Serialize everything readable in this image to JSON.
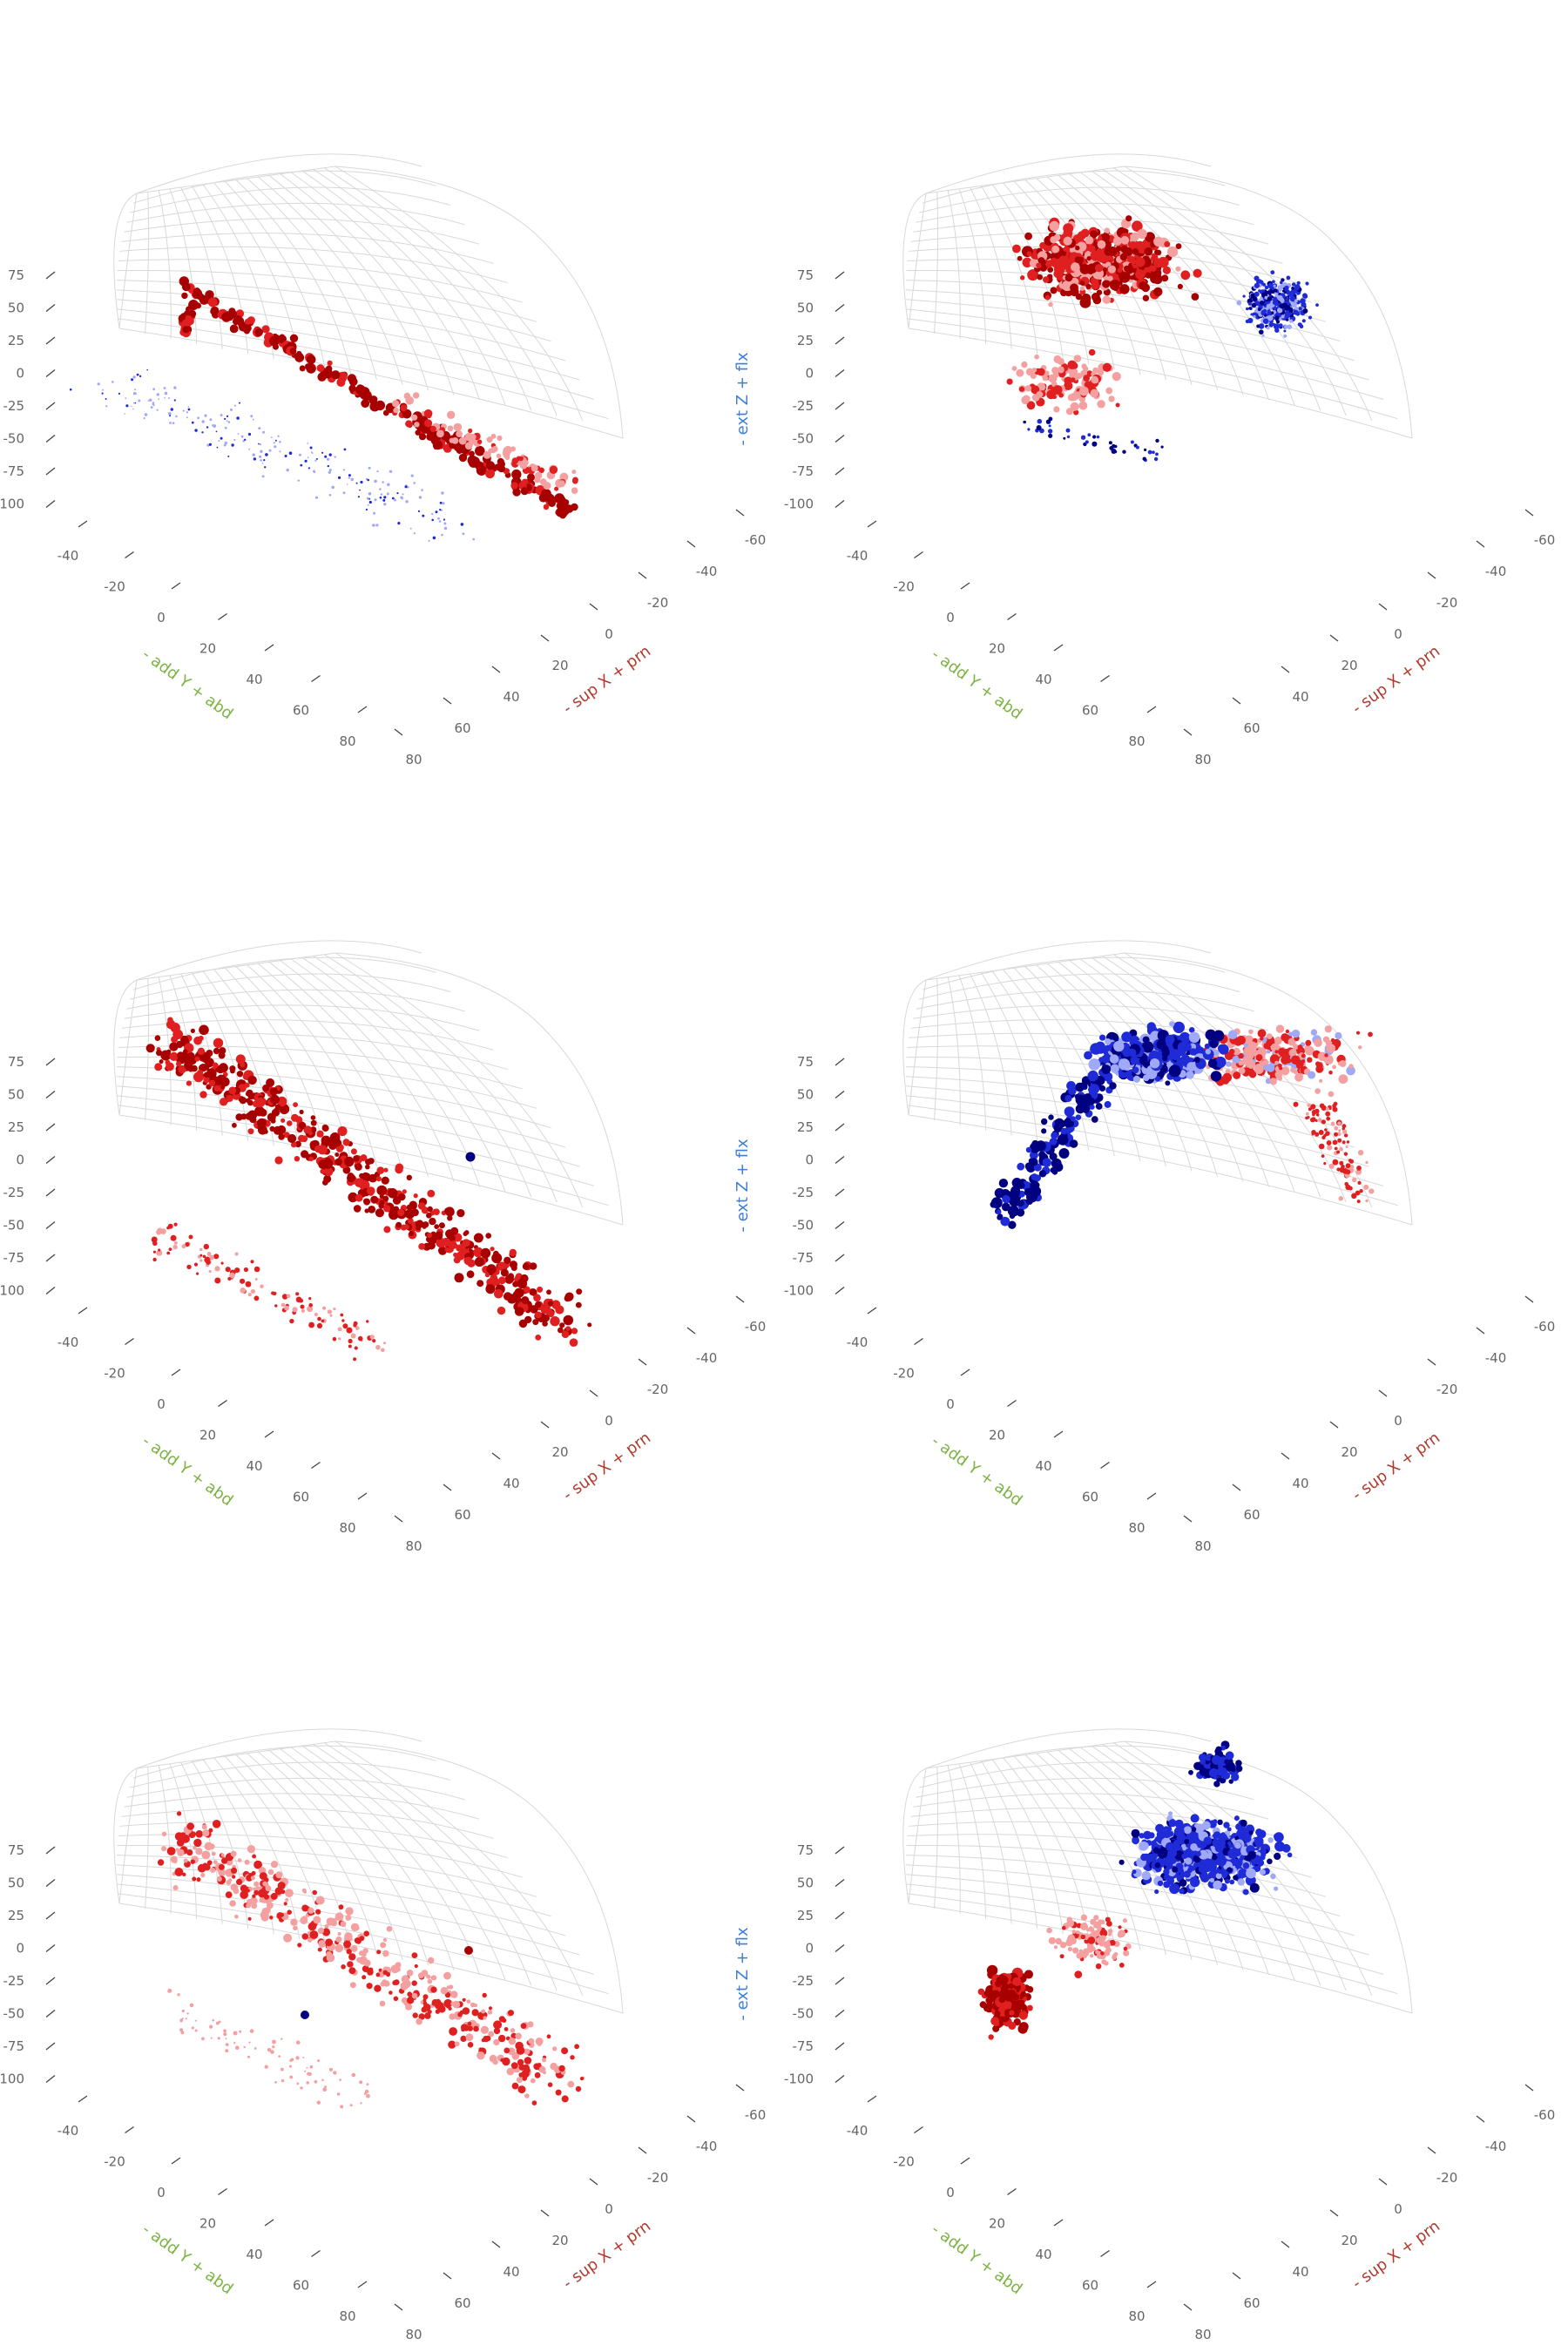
{
  "figure": {
    "layout": "3 rows x 2 columns grid of 3D scatter plots",
    "axes": {
      "x": {
        "title_parts": [
          "- sup",
          "X",
          "+ prn"
        ],
        "color": "#b03a2e",
        "ticks": [
          "-60",
          "-40",
          "-20",
          "0",
          "20",
          "40",
          "60",
          "80"
        ]
      },
      "y": {
        "title_parts": [
          "- add",
          "Y",
          "+ abd"
        ],
        "color": "#7cb342",
        "ticks": [
          "-40",
          "-20",
          "0",
          "20",
          "40",
          "60",
          "80"
        ]
      },
      "z": {
        "title_parts": [
          "- ext",
          "Z",
          "+ flx"
        ],
        "color": "#3f7fd6",
        "ticks": [
          "75",
          "50",
          "25",
          "0",
          "-25",
          "-50",
          "-75",
          "-100"
        ]
      }
    },
    "colors": {
      "dark_red": "#a80000",
      "red": "#e02020",
      "light_red": "#f4a0a0",
      "light_blue": "#a0a8f8",
      "blue": "#1f2bd6",
      "dark_blue": "#000080",
      "grid": "#d8d8d8",
      "tick_text": "#666666"
    }
  },
  "chart_data": [
    {
      "panel": "row1-left",
      "type": "scatter",
      "dimensions": 3,
      "color_scale": "red-white-blue diverging",
      "dominant": "dark red trail from upper-left (Y≈-40, Z≈50) down to lower-right (X≈-60, Z≈-100); sparse light-blue points below",
      "z_title_shown": false
    },
    {
      "panel": "row1-right",
      "type": "scatter",
      "dimensions": 3,
      "color_scale": "red-white-blue diverging",
      "dominant": "dense dark/medium red cloud at top, blue cluster on right near X≈-60",
      "z_title_shown": true
    },
    {
      "panel": "row2-left",
      "type": "scatter",
      "dimensions": 3,
      "color_scale": "red-white-blue diverging",
      "dominant": "dark red diagonal band from upper-left to lower-right; one dark blue point near center",
      "z_title_shown": false
    },
    {
      "panel": "row2-right",
      "type": "scatter",
      "dimensions": 3,
      "color_scale": "red-white-blue diverging",
      "dominant": "blue arc with dark blue on left end, red and light points on right side",
      "z_title_shown": true
    },
    {
      "panel": "row3-left",
      "type": "scatter",
      "dimensions": 3,
      "color_scale": "red-white-blue diverging",
      "dominant": "light/medium red scattered band; one dark red and one dark blue point",
      "z_title_shown": false
    },
    {
      "panel": "row3-right",
      "type": "scatter",
      "dimensions": 3,
      "color_scale": "red-white-blue diverging",
      "dominant": "dense blue arc at top right with dark blue clusters; dark red cluster at lower left",
      "z_title_shown": true
    }
  ]
}
